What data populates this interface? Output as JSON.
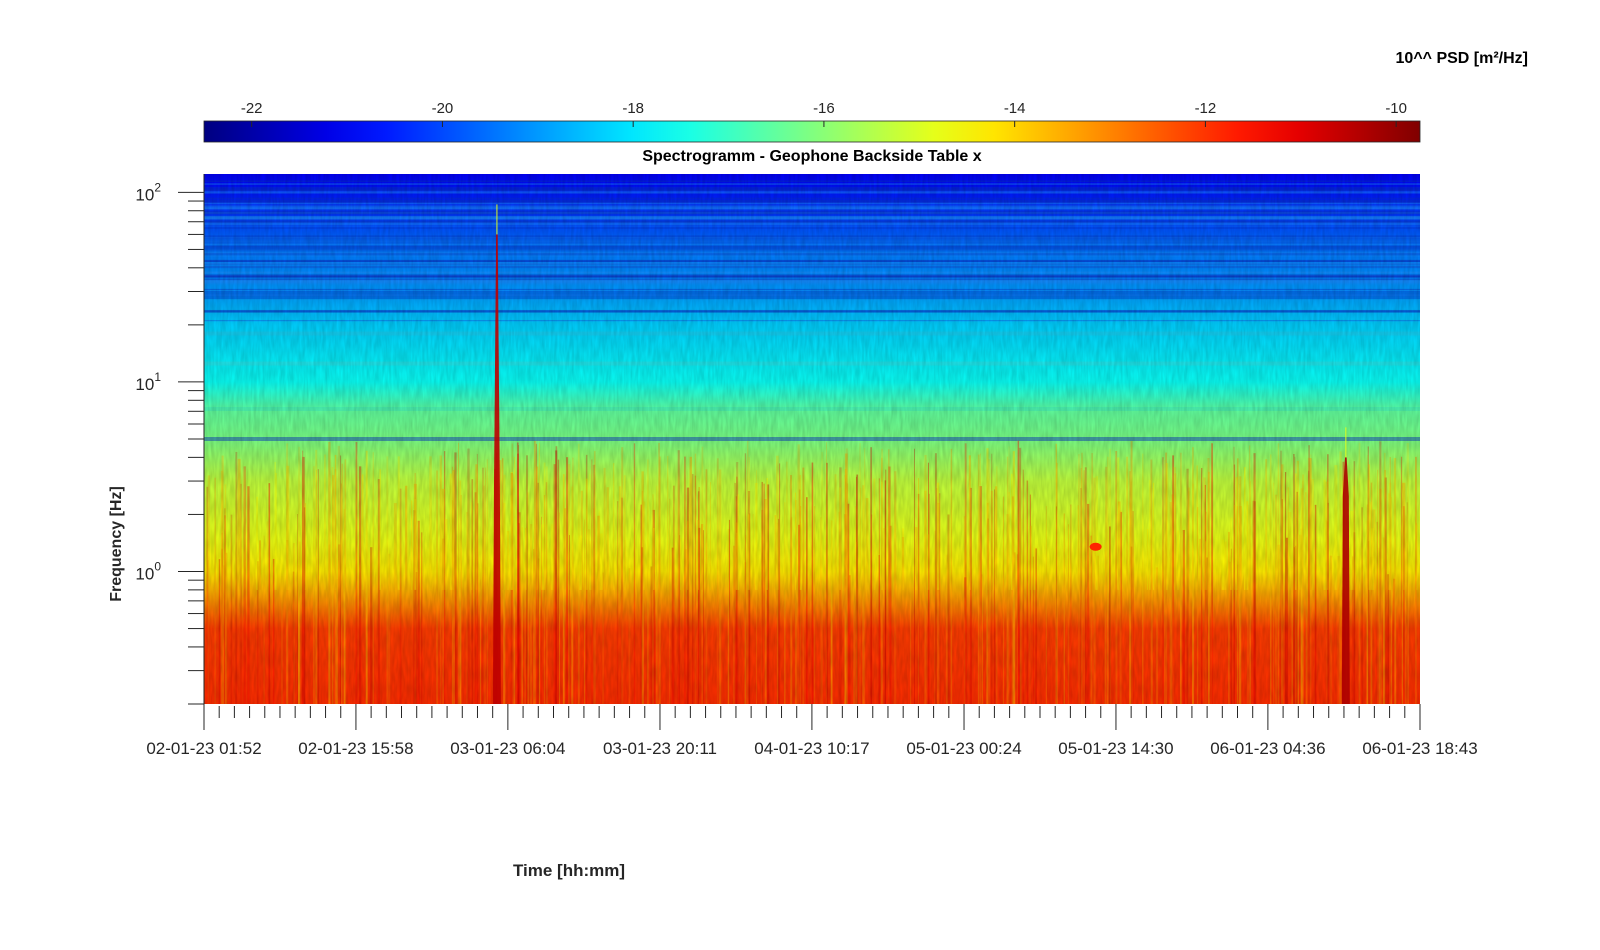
{
  "chart_data": {
    "type": "heatmap",
    "title": "Spectrogramm - Geophone Backside Table x",
    "xlabel": "Time [hh:mm]",
    "ylabel": "Frequency [Hz]",
    "yscale": "log",
    "ylim": [
      0.2,
      125
    ],
    "xlim": [
      "02-01-23 01:52",
      "06-01-23 18:43"
    ],
    "x_ticks": [
      "02-01-23 01:52",
      "02-01-23 15:58",
      "03-01-23 06:04",
      "03-01-23 20:11",
      "04-01-23 10:17",
      "05-01-23 00:24",
      "05-01-23 14:30",
      "06-01-23 04:36",
      "06-01-23 18:43"
    ],
    "y_ticks": [
      {
        "base": "10",
        "exp": "0",
        "value": 1
      },
      {
        "base": "10",
        "exp": "1",
        "value": 10
      },
      {
        "base": "10",
        "exp": "2",
        "value": 100
      }
    ],
    "colorbar": {
      "label": "10^^ PSD [m²/Hz]",
      "range": [
        -22.5,
        -9.75
      ],
      "ticks": [
        "-22",
        "-20",
        "-18",
        "-16",
        "-14",
        "-12",
        "-10"
      ],
      "colormap": "jet",
      "location": "top"
    },
    "psd_profile": [
      {
        "freq": 0.2,
        "log_psd": -11.9
      },
      {
        "freq": 0.5,
        "log_psd": -12.1
      },
      {
        "freq": 0.7,
        "log_psd": -13.2
      },
      {
        "freq": 1.0,
        "log_psd": -14.3
      },
      {
        "freq": 1.5,
        "log_psd": -14.8
      },
      {
        "freq": 3.0,
        "log_psd": -15.3
      },
      {
        "freq": 5.0,
        "log_psd": -16.2
      },
      {
        "freq": 7.0,
        "log_psd": -16.5
      },
      {
        "freq": 10.0,
        "log_psd": -17.6
      },
      {
        "freq": 20.0,
        "log_psd": -18.3
      },
      {
        "freq": 30.0,
        "log_psd": -19.0
      },
      {
        "freq": 50.0,
        "log_psd": -19.4
      },
      {
        "freq": 80.0,
        "log_psd": -20.3
      },
      {
        "freq": 125.0,
        "log_psd": -21.0
      }
    ],
    "events": [
      {
        "time": "03-01-23 05:03",
        "max_freq": 60,
        "log_psd": -10.5
      },
      {
        "time": "05-01-23 12:37",
        "freq": 1.35,
        "log_psd": -11.8
      },
      {
        "time": "06-01-23 11:50",
        "max_freq": 4,
        "log_psd": -10.3
      }
    ]
  }
}
